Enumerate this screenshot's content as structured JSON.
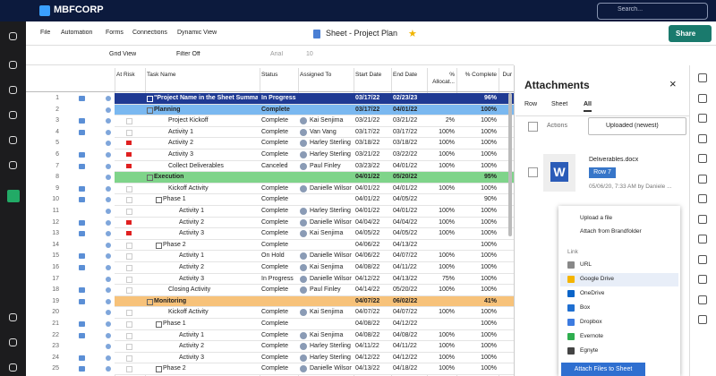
{
  "brand": "MBFCORP",
  "search": "Search...",
  "menu": [
    "File",
    "Automation",
    "Forms",
    "Connections",
    "Dynamic View"
  ],
  "sheet_title": "Sheet - Project Plan",
  "share": "Share",
  "toolbar": {
    "view": "Grid View",
    "filter": "Filter Off",
    "font": "Arial",
    "size": "10"
  },
  "columns": [
    "At Risk",
    "Task Name",
    "Status",
    "Assigned To",
    "Start Date",
    "End Date",
    "% Allocat...",
    "% Complete",
    "Dur"
  ],
  "rows": [
    {
      "num": "1",
      "task": "\"Project Name in the Sheet Summary\"",
      "status": "In Progress",
      "start": "03/17/22",
      "end": "02/23/23",
      "complete": "96%",
      "kind": "summary",
      "color": "#1f3a93"
    },
    {
      "num": "2",
      "task": "Planning",
      "status": "Complete",
      "start": "03/17/22",
      "end": "04/01/22",
      "complete": "100%",
      "kind": "section",
      "color": "#7ab8f0"
    },
    {
      "num": "3",
      "task": "Project Kickoff",
      "status": "Complete",
      "assigned": "Kai Senjima",
      "start": "03/21/22",
      "end": "03/21/22",
      "alloc": "2%",
      "complete": "100%",
      "level": 1
    },
    {
      "num": "4",
      "task": "Activity 1",
      "status": "Complete",
      "assigned": "Van Vang",
      "start": "03/17/22",
      "end": "03/17/22",
      "alloc": "100%",
      "complete": "100%",
      "level": 1
    },
    {
      "num": "5",
      "task": "Activity 2",
      "status": "Complete",
      "assigned": "Harley Sterling",
      "start": "03/18/22",
      "end": "03/18/22",
      "alloc": "100%",
      "complete": "100%",
      "level": 1,
      "at_risk": true
    },
    {
      "num": "6",
      "task": "Activity 3",
      "status": "Complete",
      "assigned": "Harley Sterling",
      "start": "03/21/22",
      "end": "03/22/22",
      "alloc": "100%",
      "complete": "100%",
      "level": 1,
      "at_risk": true
    },
    {
      "num": "7",
      "task": "Collect Deliverables",
      "status": "Canceled",
      "assigned": "Paul Finley",
      "start": "03/23/22",
      "end": "04/01/22",
      "alloc": "100%",
      "complete": "100%",
      "level": 1,
      "at_risk": true
    },
    {
      "num": "8",
      "task": "Execution",
      "start": "04/01/22",
      "end": "05/20/22",
      "complete": "95%",
      "kind": "section",
      "color": "#7fd48a"
    },
    {
      "num": "9",
      "task": "Kickoff Activity",
      "status": "Complete",
      "assigned": "Danielle Wilson",
      "start": "04/01/22",
      "end": "04/01/22",
      "alloc": "100%",
      "complete": "100%",
      "level": 1
    },
    {
      "num": "10",
      "task": "Phase 1",
      "status": "Complete",
      "start": "04/01/22",
      "end": "04/05/22",
      "complete": "90%",
      "level": 1,
      "group": true
    },
    {
      "num": "11",
      "task": "Activity 1",
      "status": "Complete",
      "assigned": "Harley Sterling",
      "start": "04/01/22",
      "end": "04/01/22",
      "alloc": "100%",
      "complete": "100%",
      "level": 2
    },
    {
      "num": "12",
      "task": "Activity 2",
      "status": "Complete",
      "assigned": "Danielle Wilson",
      "start": "04/04/22",
      "end": "04/04/22",
      "alloc": "100%",
      "complete": "100%",
      "level": 2,
      "at_risk": true
    },
    {
      "num": "13",
      "task": "Activity 3",
      "status": "Complete",
      "assigned": "Kai Senjima",
      "start": "04/05/22",
      "end": "04/05/22",
      "alloc": "100%",
      "complete": "100%",
      "level": 2,
      "at_risk": true
    },
    {
      "num": "14",
      "task": "Phase 2",
      "status": "Complete",
      "start": "04/06/22",
      "end": "04/13/22",
      "complete": "100%",
      "level": 1,
      "group": true
    },
    {
      "num": "15",
      "task": "Activity 1",
      "status": "On Hold",
      "assigned": "Danielle Wilson",
      "start": "04/06/22",
      "end": "04/07/22",
      "alloc": "100%",
      "complete": "100%",
      "level": 2
    },
    {
      "num": "16",
      "task": "Activity 2",
      "status": "Complete",
      "assigned": "Kai Senjima",
      "start": "04/08/22",
      "end": "04/11/22",
      "alloc": "100%",
      "complete": "100%",
      "level": 2
    },
    {
      "num": "17",
      "task": "Activity 3",
      "status": "In Progress",
      "assigned": "Danielle Wilson",
      "start": "04/12/22",
      "end": "04/13/22",
      "alloc": "75%",
      "complete": "100%",
      "level": 2
    },
    {
      "num": "18",
      "task": "Closing Activity",
      "status": "Complete",
      "assigned": "Paul Finley",
      "start": "04/14/22",
      "end": "05/20/22",
      "alloc": "100%",
      "complete": "100%",
      "level": 1
    },
    {
      "num": "19",
      "task": "Monitoring",
      "start": "04/07/22",
      "end": "06/02/22",
      "complete": "41%",
      "kind": "section",
      "color": "#f7c27a"
    },
    {
      "num": "20",
      "task": "Kickoff Activity",
      "status": "Complete",
      "assigned": "Kai Senjima",
      "start": "04/07/22",
      "end": "04/07/22",
      "alloc": "100%",
      "complete": "100%",
      "level": 1
    },
    {
      "num": "21",
      "task": "Phase 1",
      "status": "Complete",
      "start": "04/08/22",
      "end": "04/12/22",
      "complete": "100%",
      "level": 1,
      "group": true
    },
    {
      "num": "22",
      "task": "Activity 1",
      "status": "Complete",
      "assigned": "Kai Senjima",
      "start": "04/08/22",
      "end": "04/08/22",
      "alloc": "100%",
      "complete": "100%",
      "level": 2
    },
    {
      "num": "23",
      "task": "Activity 2",
      "status": "Complete",
      "assigned": "Harley Sterling",
      "start": "04/11/22",
      "end": "04/11/22",
      "alloc": "100%",
      "complete": "100%",
      "level": 2
    },
    {
      "num": "24",
      "task": "Activity 3",
      "status": "Complete",
      "assigned": "Harley Sterling",
      "start": "04/12/22",
      "end": "04/12/22",
      "alloc": "100%",
      "complete": "100%",
      "level": 2
    },
    {
      "num": "25",
      "task": "Phase 2",
      "status": "Complete",
      "assigned": "Danielle Wilson",
      "start": "04/13/22",
      "end": "04/18/22",
      "alloc": "100%",
      "complete": "100%",
      "level": 1,
      "group": true
    }
  ],
  "panel": {
    "title": "Attachments",
    "tabs": [
      "Row",
      "Sheet",
      "All"
    ],
    "actions": "Actions",
    "sort": "Uploaded (newest)",
    "file": {
      "name": "Deliverables.docx",
      "row": "Row 7",
      "meta": "05/06/20, 7:33 AM by Daniele ..."
    },
    "upload": [
      "Upload a file",
      "Attach from Brandfolder"
    ],
    "link_heading": "Link",
    "links": [
      "URL",
      "Google Drive",
      "OneDrive",
      "Box",
      "Dropbox",
      "Evernote",
      "Egnyte"
    ],
    "button": "Attach Files to Sheet"
  }
}
